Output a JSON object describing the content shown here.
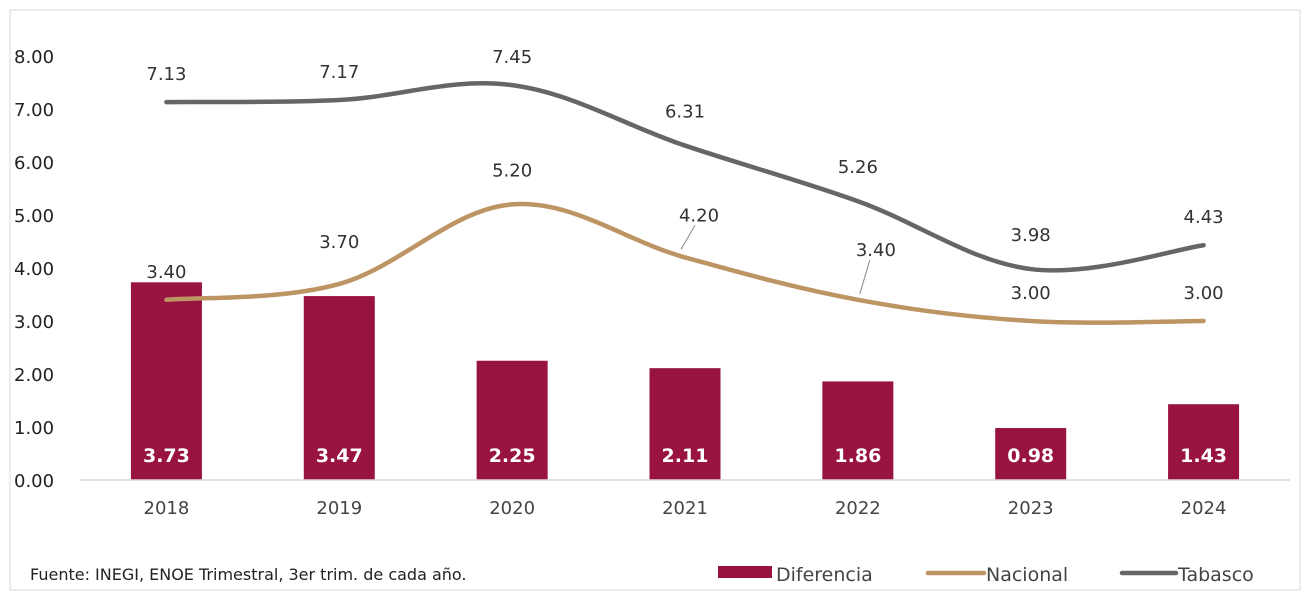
{
  "chart_data": {
    "type": "bar",
    "categories": [
      "2018",
      "2019",
      "2020",
      "2021",
      "2022",
      "2023",
      "2024"
    ],
    "ylim": [
      0,
      8
    ],
    "yticks": [
      "0.00",
      "1.00",
      "2.00",
      "3.00",
      "4.00",
      "5.00",
      "6.00",
      "7.00",
      "8.00"
    ],
    "grid": false,
    "legend_position": "bottom-right",
    "series": [
      {
        "name": "Diferencia",
        "type": "bar",
        "color": "#98133f",
        "values": [
          3.73,
          3.47,
          2.25,
          2.11,
          1.86,
          0.98,
          1.43
        ],
        "labels": [
          "3.73",
          "3.47",
          "2.25",
          "2.11",
          "1.86",
          "0.98",
          "1.43"
        ]
      },
      {
        "name": "Nacional",
        "type": "line",
        "color": "#bd9463",
        "values": [
          3.4,
          3.7,
          5.2,
          4.2,
          3.4,
          3.0,
          3.0
        ],
        "labels": [
          "3.40",
          "3.70",
          "5.20",
          "4.20",
          "3.40",
          "3.00",
          "3.00"
        ]
      },
      {
        "name": "Tabasco",
        "type": "line",
        "color": "#666666",
        "values": [
          7.13,
          7.17,
          7.45,
          6.31,
          5.26,
          3.98,
          4.43
        ],
        "labels": [
          "7.13",
          "7.17",
          "7.45",
          "6.31",
          "5.26",
          "3.98",
          "4.43"
        ]
      }
    ],
    "source": "Fuente: INEGI, ENOE Trimestral, 3er trim. de cada año."
  }
}
